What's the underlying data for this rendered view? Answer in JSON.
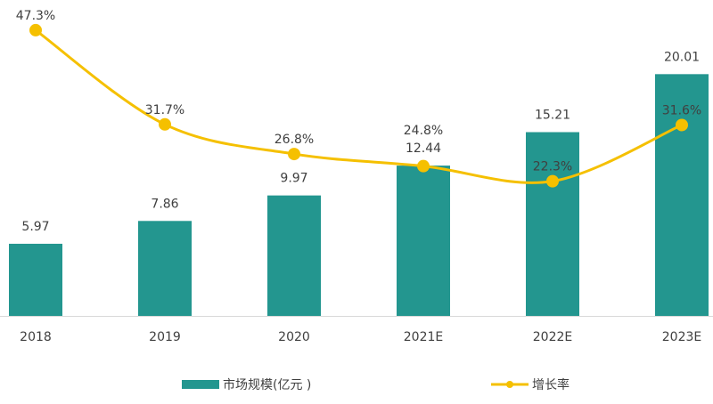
{
  "chart_data": {
    "type": "bar+line",
    "categories": [
      "2018",
      "2019",
      "2020",
      "2021E",
      "2022E",
      "2023E"
    ],
    "series": [
      {
        "name": "市场规模(亿元 )",
        "type": "bar",
        "values": [
          5.97,
          7.86,
          9.97,
          12.44,
          15.21,
          20.01
        ],
        "labels": [
          "5.97",
          "7.86",
          "9.97",
          "12.44",
          "15.21",
          "20.01"
        ],
        "color": "#23968f"
      },
      {
        "name": "增长率",
        "type": "line",
        "values": [
          47.3,
          31.7,
          26.8,
          24.8,
          22.3,
          31.6
        ],
        "labels": [
          "47.3%",
          "31.7%",
          "26.8%",
          "24.8%",
          "22.3%",
          "31.6%"
        ],
        "color": "#f5c000"
      }
    ],
    "legend": "bottom",
    "grid": false,
    "axes_visible": false,
    "ylim_bar": [
      0,
      26
    ],
    "ylim_line": [
      0,
      52
    ]
  }
}
